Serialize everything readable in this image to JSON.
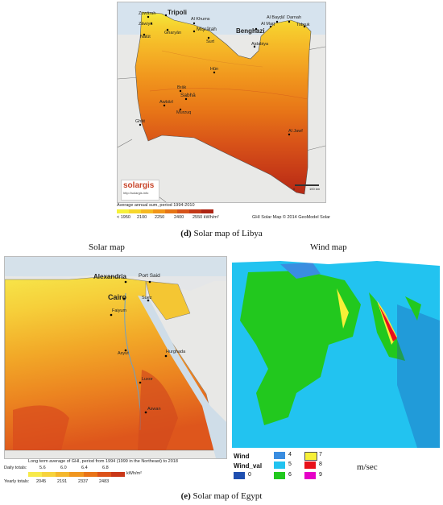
{
  "libya": {
    "cities": [
      "Tripoli",
      "Zuwārah",
      "Al Khums",
      "Zāwiya",
      "Gharyān",
      "Mişrātah",
      "Nālūt",
      "Benghazi",
      "Surt",
      "Al Bayḑā'",
      "Darnah",
      "Al Marj",
      "Tobruk",
      "Ajdabiya",
      "Hūn",
      "Brāk",
      "Sabhā",
      "Awbārī",
      "Murzuq",
      "Ghāt",
      "Al Jawf"
    ],
    "brand": "solargis",
    "brand_url": "http://solargis.info",
    "legend_title": "Average annual sum, period 1994-2010",
    "legend_ticks": [
      "< 1950",
      "2100",
      "2250",
      "2400",
      "2550 kWh/m²"
    ],
    "legend_colors": [
      "#f6f13a",
      "#f7d72c",
      "#f5b921",
      "#f19618",
      "#e57415",
      "#d6531a",
      "#c33817",
      "#ad2413"
    ],
    "scale_label": "100 km",
    "scale_zero": "0",
    "credit": "GHI Solar Map © 2014 GeoModel Solar",
    "caption_label": "(d)",
    "caption_text": "Solar map of Libya"
  },
  "egypt_solar": {
    "heading": "Solar map",
    "cities": [
      "Alexandria",
      "Port Said",
      "Cairo",
      "Suez",
      "Faiyum",
      "Hurghada",
      "Asyut",
      "Luxor",
      "Aswan"
    ],
    "legend_note": "Long term average of GHI, period from 1994 (1999 in the Northeast) to 2018",
    "daily_label": "Daily totals:",
    "daily_ticks": [
      "5.6",
      "6.0",
      "6.4",
      "6.8"
    ],
    "yearly_label": "Yearly totals:",
    "yearly_ticks": [
      "2045",
      "2191",
      "2337",
      "2483"
    ],
    "unit": "kWh/m²",
    "legend_colors": [
      "#f7ea4b",
      "#f7d33c",
      "#f4b72c",
      "#f0961f",
      "#e97418",
      "#dc5219",
      "#c93718"
    ]
  },
  "egypt_wind": {
    "heading": "Wind map",
    "legend_wind": "Wind",
    "legend_windval": "Wind_val",
    "classes": [
      {
        "value": "0",
        "color": "#1f4fb0"
      },
      {
        "value": "4",
        "color": "#3a8de0"
      },
      {
        "value": "5",
        "color": "#22c3f0"
      },
      {
        "value": "6",
        "color": "#22c81e"
      },
      {
        "value": "7",
        "color": "#f7f038"
      },
      {
        "value": "8",
        "color": "#e8101a"
      },
      {
        "value": "9",
        "color": "#e600c8"
      }
    ],
    "unit": "m/sec"
  },
  "caption_e_label": "(e)",
  "caption_e_text": "Solar map of Egypt"
}
